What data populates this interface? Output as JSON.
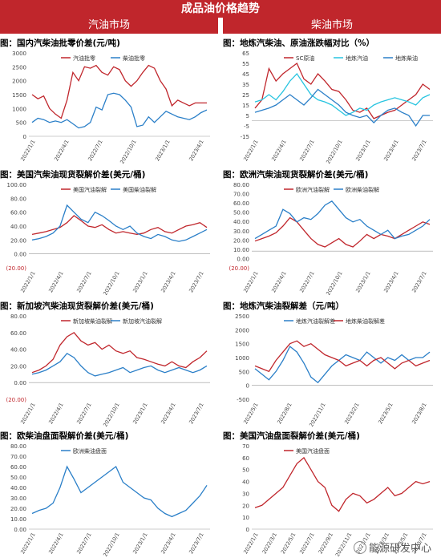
{
  "header": {
    "title": "成品油价格趋势"
  },
  "columns": {
    "left": "汽油市场",
    "right": "柴油市场"
  },
  "watermark": "能源研发中心",
  "colors": {
    "red": "#c0262c",
    "blue": "#2a7fc8"
  },
  "chart_data": [
    {
      "id": "c1",
      "type": "line",
      "title": "图：国内汽柴油批零价差(元/吨)",
      "ylim": [
        0,
        3000
      ],
      "yticks": [
        "0",
        "500",
        "1000",
        "1500",
        "2000",
        "2500",
        "3000"
      ],
      "xticks": [
        "2022/1/1",
        "2022/4/1",
        "2022/7/1",
        "2022/10/1",
        "2023/1/1",
        "2023/4/1"
      ],
      "series": [
        {
          "name": "汽油批零",
          "color": "red",
          "values": [
            1500,
            1350,
            1450,
            1000,
            800,
            650,
            1300,
            2300,
            2000,
            2500,
            2450,
            2550,
            2300,
            2200,
            2500,
            2400,
            2000,
            1800,
            2000,
            2300,
            2550,
            2450,
            2000,
            1700,
            1100,
            1300,
            1200,
            1100,
            1200,
            1200,
            1200
          ]
        },
        {
          "name": "柴油批零",
          "color": "blue",
          "values": [
            500,
            650,
            600,
            500,
            550,
            500,
            600,
            450,
            300,
            350,
            500,
            1050,
            950,
            1500,
            1550,
            1500,
            1300,
            1050,
            350,
            400,
            700,
            500,
            700,
            900,
            800,
            700,
            650,
            600,
            700,
            850,
            950
          ]
        }
      ]
    },
    {
      "id": "c2",
      "type": "line",
      "title": "图：地炼汽柴油、原油涨跌幅对比（%）",
      "ylim": [
        -15,
        65
      ],
      "yticks": [
        "-15",
        "-5",
        "5",
        "15",
        "25",
        "35",
        "45",
        "55",
        "65"
      ],
      "xticks": [
        "2022/1/1",
        "2022/4/1",
        "2022/7/1",
        "2022/10/1",
        "2023/1/1",
        "2023/4/1",
        "2023/7/1"
      ],
      "series": [
        {
          "name": "SC原油",
          "color": "red",
          "values": [
            12,
            20,
            50,
            38,
            45,
            50,
            55,
            40,
            35,
            45,
            38,
            30,
            28,
            20,
            10,
            8,
            12,
            2,
            5,
            8,
            10,
            15,
            20,
            25,
            35,
            30
          ]
        },
        {
          "name": "地炼汽油",
          "color": "cyan",
          "values": [
            18,
            20,
            25,
            20,
            28,
            38,
            45,
            35,
            25,
            20,
            18,
            15,
            10,
            5,
            8,
            12,
            10,
            15,
            18,
            20,
            22,
            20,
            18,
            15,
            22,
            25
          ]
        },
        {
          "name": "地炼柴油",
          "color": "blue",
          "values": [
            8,
            10,
            12,
            15,
            20,
            25,
            20,
            15,
            22,
            30,
            25,
            20,
            15,
            8,
            5,
            3,
            5,
            -2,
            5,
            10,
            12,
            8,
            5,
            -5,
            5,
            5
          ]
        }
      ]
    },
    {
      "id": "c3",
      "type": "line",
      "title": "图：美国汽柴油现货裂解价差(美元/桶)",
      "ylim": [
        -20,
        100
      ],
      "yticks": [
        "(20.00)",
        "0.00",
        "20.00",
        "40.00",
        "60.00",
        "80.00",
        "100.00"
      ],
      "xticks": [
        "2022/1/1",
        "2022/4/1",
        "2022/7/1",
        "2022/10/1",
        "2023/1/1",
        "2023/4/1",
        "2023/7/1"
      ],
      "series": [
        {
          "name": "美国汽油裂解",
          "color": "red",
          "values": [
            28,
            30,
            32,
            35,
            38,
            45,
            55,
            48,
            40,
            38,
            42,
            35,
            30,
            32,
            30,
            28,
            30,
            35,
            38,
            32,
            30,
            35,
            40,
            42,
            45,
            38
          ]
        },
        {
          "name": "美国柴油裂解",
          "color": "blue",
          "values": [
            20,
            22,
            25,
            30,
            40,
            70,
            60,
            50,
            45,
            60,
            55,
            48,
            40,
            35,
            40,
            30,
            25,
            22,
            28,
            25,
            20,
            18,
            20,
            25,
            30,
            35
          ]
        }
      ]
    },
    {
      "id": "c4",
      "type": "line",
      "title": "图：欧洲汽柴油现货裂解价差(美元/桶)",
      "ylim": [
        -20,
        80
      ],
      "yticks": [
        "(20.00)",
        "0.00",
        "10.00",
        "20.00",
        "30.00",
        "40.00",
        "50.00",
        "60.00",
        "70.00",
        "80.00"
      ],
      "xticks": [
        "2022/1/1",
        "2022/4/1",
        "2022/7/1",
        "2022/10/1",
        "2023/1/1",
        "2023/4/1",
        "2023/7/1"
      ],
      "series": [
        {
          "name": "欧洲汽油裂解",
          "color": "red",
          "values": [
            12,
            15,
            18,
            22,
            30,
            40,
            35,
            25,
            15,
            8,
            5,
            10,
            15,
            8,
            5,
            12,
            20,
            15,
            20,
            18,
            15,
            20,
            25,
            30,
            35,
            32
          ]
        },
        {
          "name": "欧洲柴油裂解",
          "color": "blue",
          "values": [
            15,
            20,
            25,
            30,
            50,
            45,
            35,
            40,
            38,
            45,
            55,
            60,
            50,
            40,
            35,
            38,
            30,
            25,
            20,
            25,
            15,
            18,
            20,
            25,
            30,
            38
          ]
        }
      ]
    },
    {
      "id": "c5",
      "type": "line",
      "title": "图：新加坡汽柴油现货裂解价差(美元/桶)",
      "ylim": [
        -20,
        80
      ],
      "yticks": [
        "(20.00)",
        "0.00",
        "20.00",
        "40.00",
        "60.00",
        "80.00"
      ],
      "xticks": [
        "2022/1/1",
        "2022/4/1",
        "2022/7/1",
        "2022/10/1",
        "2023/1/1",
        "2023/4/1",
        "2023/7/1"
      ],
      "series": [
        {
          "name": "新加坡柴油裂解",
          "color": "red",
          "values": [
            12,
            15,
            20,
            28,
            45,
            55,
            60,
            50,
            45,
            48,
            40,
            45,
            38,
            35,
            38,
            30,
            28,
            25,
            22,
            20,
            25,
            20,
            18,
            25,
            30,
            38
          ]
        },
        {
          "name": "新加坡汽油裂解",
          "color": "blue",
          "values": [
            10,
            12,
            15,
            20,
            25,
            35,
            30,
            20,
            12,
            8,
            10,
            12,
            15,
            18,
            12,
            15,
            18,
            20,
            15,
            12,
            15,
            18,
            15,
            12,
            15,
            20
          ]
        }
      ]
    },
    {
      "id": "c6",
      "type": "line",
      "title": "图：地炼汽柴油裂解差（元/吨）",
      "ylim": [
        -500,
        2500
      ],
      "yticks": [
        "-500",
        "0",
        "500",
        "1000",
        "1500",
        "2000",
        "2500"
      ],
      "xticks": [
        "2022/5/1",
        "2022/8/1",
        "2022/11/1",
        "2023/2/1",
        "2023/5/1",
        "2023/8/1"
      ],
      "series": [
        {
          "name": "地炼汽油裂解差",
          "color": "blue",
          "values": [
            600,
            400,
            200,
            500,
            900,
            1400,
            1200,
            800,
            300,
            100,
            400,
            700,
            900,
            1100,
            1000,
            900,
            1200,
            1000,
            800,
            1000,
            900,
            1100,
            900,
            1000,
            1000,
            1200
          ]
        },
        {
          "name": "地炼柴油裂解差",
          "color": "red",
          "values": [
            700,
            600,
            500,
            900,
            1200,
            1500,
            1600,
            1400,
            1500,
            1300,
            1100,
            1000,
            900,
            700,
            800,
            900,
            700,
            900,
            1000,
            800,
            600,
            800,
            900,
            700,
            800,
            900
          ]
        }
      ]
    },
    {
      "id": "c7",
      "type": "line",
      "title": "图：欧柴油盘面裂解价差(美元/桶)",
      "ylim": [
        0,
        80
      ],
      "yticks": [
        "0.00",
        "10.00",
        "20.00",
        "30.00",
        "40.00",
        "50.00",
        "60.00",
        "70.00",
        "80.00"
      ],
      "xticks": [
        "2022/1/1",
        "2022/4/1",
        "2022/7/1",
        "2022/10/1",
        "2023/1/1",
        "2023/4/1",
        "2023/7/1"
      ],
      "series": [
        {
          "name": "欧洲柴油盘面",
          "color": "blue",
          "values": [
            15,
            18,
            20,
            25,
            40,
            60,
            48,
            35,
            40,
            45,
            50,
            55,
            60,
            45,
            40,
            35,
            30,
            28,
            20,
            15,
            12,
            15,
            18,
            25,
            32,
            42
          ]
        }
      ]
    },
    {
      "id": "c8",
      "type": "line",
      "title": "图：美国汽油盘面裂解价差(美元/桶)",
      "ylim": [
        0,
        70
      ],
      "yticks": [
        "0",
        "10",
        "20",
        "30",
        "40",
        "50",
        "60",
        "70"
      ],
      "xticks": [
        "2022/1/1",
        "2022/3/1",
        "2022/5/1",
        "2022/7/1",
        "2022/9/1",
        "2022/11/1",
        "2023/1/1",
        "2023/3/1",
        "2023/5/1",
        "2023/7/1"
      ],
      "series": [
        {
          "name": "美国汽油盘面",
          "color": "red",
          "values": [
            18,
            20,
            25,
            30,
            35,
            45,
            55,
            60,
            50,
            40,
            35,
            20,
            15,
            25,
            30,
            28,
            22,
            25,
            30,
            35,
            28,
            30,
            35,
            40,
            38,
            40
          ]
        }
      ]
    }
  ]
}
